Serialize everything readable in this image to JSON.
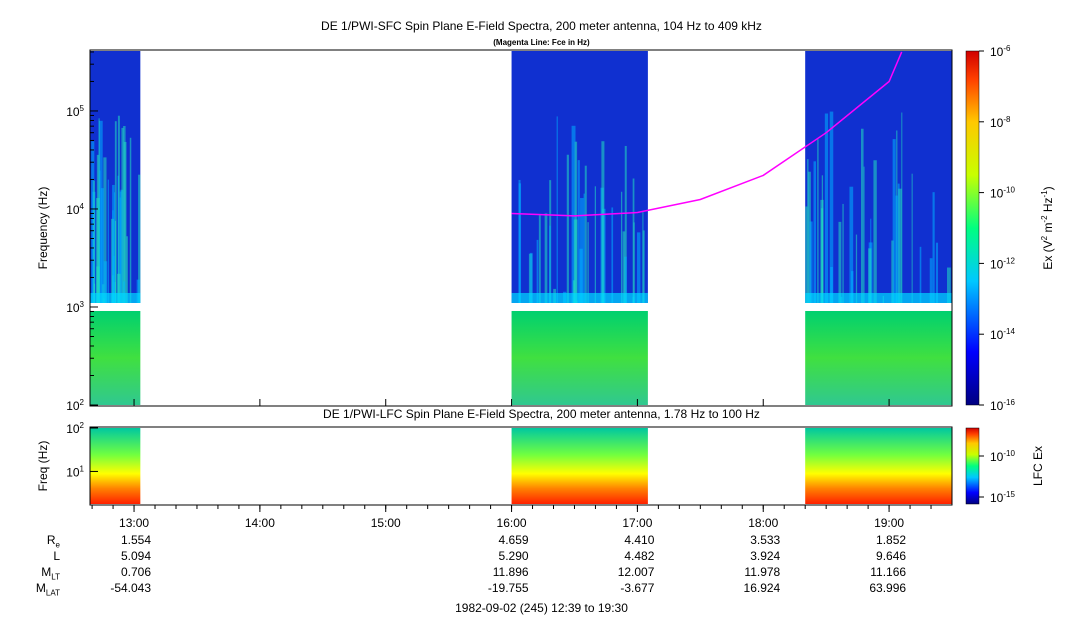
{
  "titles": {
    "sfc_title": "DE 1/PWI-SFC  Spin Plane E-Field Spectra, 200 meter antenna, 104 Hz to 409 kHz",
    "sfc_subtitle": "(Magenta Line: Fce in Hz)",
    "lfc_title": "DE 1/PWI-LFC  Spin Plane E-Field Spectra, 200 meter antenna, 1.78 Hz to 100 Hz"
  },
  "chart_data": [
    {
      "type": "heatmap",
      "name": "sfc",
      "ylabel": "Frequency (Hz)",
      "yscale": "log",
      "ylim": [
        100,
        409000
      ],
      "ytick_labels": [
        "10^2",
        "10^3",
        "10^4",
        "10^5"
      ],
      "xlim": [
        "12:39",
        "19:30"
      ],
      "data_intervals": [
        [
          "12:39",
          "13:03"
        ],
        [
          "16:00",
          "17:05"
        ],
        [
          "18:20",
          "19:30"
        ]
      ],
      "colorbar": {
        "label": "Ex (V^2 m^-2 Hz^-1)",
        "scale": "log",
        "range": [
          1e-16,
          1e-06
        ],
        "tick_labels": [
          "10^-6",
          "10^-8",
          "10^-10",
          "10^-12",
          "10^-14",
          "10^-16"
        ]
      },
      "fce_line": {
        "color": "#ff00ff",
        "times": [
          "16:00",
          "16:30",
          "17:00",
          "17:30",
          "18:00",
          "18:30",
          "19:00",
          "19:06"
        ],
        "values_hz": [
          9000,
          8500,
          9200,
          12500,
          22000,
          60000,
          200000,
          400000
        ]
      }
    },
    {
      "type": "heatmap",
      "name": "lfc",
      "ylabel": "Freq (Hz)",
      "yscale": "log",
      "ylim": [
        1.78,
        100
      ],
      "ytick_labels": [
        "10^2",
        "10^1"
      ],
      "data_intervals": [
        [
          "12:39",
          "13:03"
        ],
        [
          "16:00",
          "17:05"
        ],
        [
          "18:20",
          "19:30"
        ]
      ],
      "colorbar": {
        "label": "LFC Ex",
        "scale": "log",
        "tick_labels": [
          "10^-10",
          "10^-15"
        ]
      }
    }
  ],
  "time_axis": {
    "ticks": [
      "13:00",
      "14:00",
      "15:00",
      "16:00",
      "17:00",
      "18:00",
      "19:00"
    ]
  },
  "ephemeris": {
    "rows": [
      {
        "name": "R",
        "sub": "e",
        "values": [
          "1.554",
          "",
          "",
          "4.659",
          "4.410",
          "3.533",
          "1.852"
        ]
      },
      {
        "name": "L",
        "sub": "",
        "values": [
          "5.094",
          "",
          "",
          "5.290",
          "4.482",
          "3.924",
          "9.646"
        ]
      },
      {
        "name": "M",
        "sub": "LT",
        "values": [
          "0.706",
          "",
          "",
          "11.896",
          "12.007",
          "11.978",
          "11.166"
        ]
      },
      {
        "name": "M",
        "sub": "LAT",
        "values": [
          "-54.043",
          "",
          "",
          "-19.755",
          "-3.677",
          "16.924",
          "63.996"
        ]
      }
    ]
  },
  "footer": "1982-09-02 (245) 12:39 to 19:30"
}
